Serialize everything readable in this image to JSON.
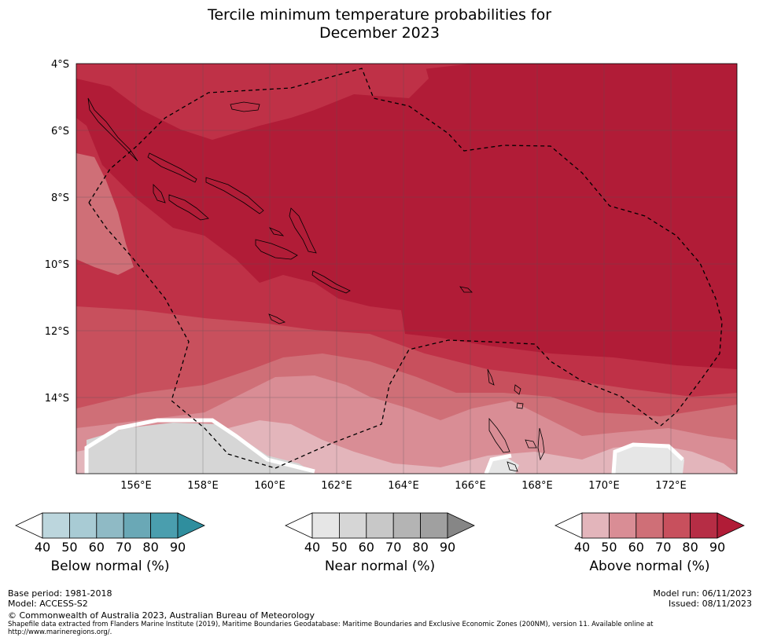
{
  "title": {
    "line1": "Tercile minimum temperature probabilities for",
    "line2": "December 2023"
  },
  "map": {
    "lat_labels": [
      "4°S",
      "6°S",
      "8°S",
      "10°S",
      "12°S",
      "14°S"
    ],
    "lon_labels": [
      "156°E",
      "158°E",
      "160°E",
      "162°E",
      "164°E",
      "166°E",
      "168°E",
      "170°E",
      "172°E"
    ],
    "colors": {
      "above_90": "#b11c37",
      "above_80": "#bf3147",
      "above_70": "#c8505d",
      "above_60": "#cf6f77",
      "above_50": "#d98d95",
      "above_40": "#e3b5bb",
      "near_50": "#d6d6d6",
      "near_40": "#e6e6e6"
    }
  },
  "colorbars": [
    {
      "name": "Below normal (%)",
      "ticks": [
        "40",
        "50",
        "60",
        "70",
        "80",
        "90"
      ],
      "colors": [
        "#bcd6dd",
        "#a8cbd4",
        "#8fbac5",
        "#6aa8b6",
        "#4a9eae",
        "#2f8e9e"
      ]
    },
    {
      "name": "Near normal (%)",
      "ticks": [
        "40",
        "50",
        "60",
        "70",
        "80",
        "90"
      ],
      "colors": [
        "#e6e6e6",
        "#d6d6d6",
        "#c8c8c8",
        "#b4b4b4",
        "#a0a0a0",
        "#868686"
      ]
    },
    {
      "name": "Above normal (%)",
      "ticks": [
        "40",
        "50",
        "60",
        "70",
        "80",
        "90"
      ],
      "colors": [
        "#e3b5bb",
        "#d98d95",
        "#cf6f77",
        "#c8505d",
        "#b62d45",
        "#b11c37"
      ]
    }
  ],
  "footer": {
    "base_period": "Base period: 1981-2018",
    "model": "Model: ACCESS-S2",
    "model_run": "Model run: 06/11/2023",
    "issued": "Issued: 08/11/2023",
    "copyright": "© Commonwealth of Australia 2023, Australian Bureau of Meteorology",
    "shapefile_line1": "Shapefile data extracted from Flanders Marine Institute (2019), Maritime Boundaries Geodatabase: Maritime Boundaries and Exclusive Economic Zones (200NM), version 11. Available online at",
    "shapefile_line2": "http://www.marineregions.org/."
  }
}
